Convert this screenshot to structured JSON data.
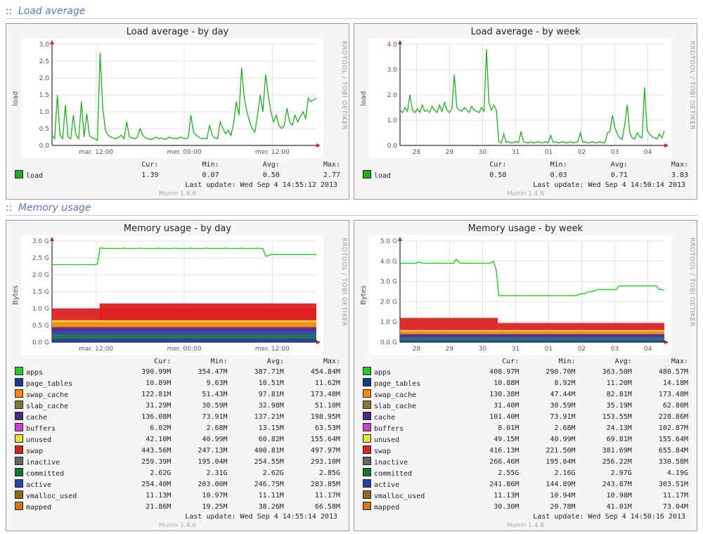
{
  "sections": {
    "load": {
      "title": "Load average"
    },
    "memory": {
      "title": "Memory usage"
    }
  },
  "watermark": "RRDTOOL / TOBI OETIKER",
  "munin_version": "Munin 1.4.6",
  "colors": {
    "grid": "#e0e0e0",
    "grid_major": "#c0c0c0",
    "axis": "#cc2222",
    "plot_bg": "#ffffff",
    "panel_bg": "#f5f5f5",
    "border": "#999999"
  },
  "series_colors": {
    "load": "#22aa22",
    "apps": "#22cc22",
    "page_tables": "#1a3a8a",
    "swap_cache": "#ff8800",
    "slab_cache": "#887733",
    "cache": "#4a2a8a",
    "buffers": "#cc44cc",
    "unused": "#eedd33",
    "swap": "#dd2222",
    "inactive": "#666666",
    "committed": "#117733",
    "active": "#2244aa",
    "vmalloc_used": "#8a6d1a",
    "mapped": "#cc7722"
  },
  "load_day": {
    "title": "Load average - by day",
    "ylabel": "load",
    "ylim": [
      0,
      3.0
    ],
    "ytick_step": 0.5,
    "xticks": [
      "mar. 12:00",
      "mer. 00:00",
      "mer. 12:00"
    ],
    "data": [
      0.3,
      0.2,
      1.5,
      0.3,
      0.2,
      1.2,
      0.25,
      0.2,
      0.9,
      0.3,
      0.2,
      1.3,
      0.25,
      0.95,
      0.3,
      0.22,
      0.2,
      0.15,
      2.75,
      1.1,
      0.45,
      0.3,
      0.25,
      0.22,
      0.2,
      0.25,
      0.3,
      0.2,
      0.7,
      0.25,
      0.22,
      0.2,
      0.25,
      0.5,
      0.3,
      0.22,
      0.2,
      0.18,
      0.2,
      0.25,
      0.2,
      0.22,
      0.18,
      0.2,
      0.25,
      0.2,
      0.22,
      0.2,
      0.25,
      0.22,
      0.2,
      0.22,
      0.9,
      0.4,
      0.3,
      0.25,
      0.2,
      0.22,
      0.2,
      0.6,
      0.3,
      0.22,
      0.2,
      0.7,
      0.5,
      0.35,
      0.45,
      0.3,
      0.65,
      1.3,
      0.9,
      2.3,
      1.4,
      1.0,
      0.7,
      0.5,
      0.4,
      0.9,
      1.5,
      1.0,
      2.1,
      1.5,
      1.0,
      0.7,
      0.9,
      0.6,
      0.5,
      0.6,
      1.1,
      0.7,
      0.6,
      0.9,
      0.7,
      0.85,
      1.0,
      0.8,
      1.4,
      1.3,
      1.35,
      1.4
    ],
    "stats_header": [
      "Cur:",
      "Min:",
      "Avg:",
      "Max:"
    ],
    "series": [
      {
        "name": "load",
        "color": "#22aa22",
        "cur": "1.39",
        "min": "0.07",
        "avg": "0.50",
        "max": "2.77"
      }
    ],
    "last_update": "Last update: Wed Sep  4 14:55:12 2013"
  },
  "load_week": {
    "title": "Load average - by week",
    "ylabel": "load",
    "ylim": [
      0,
      4.0
    ],
    "ytick_step": 1.0,
    "xticks": [
      "28",
      "29",
      "30",
      "31",
      "01",
      "02",
      "03",
      "04"
    ],
    "data": [
      1.4,
      1.3,
      1.5,
      1.35,
      2.0,
      1.4,
      1.3,
      1.45,
      1.3,
      1.6,
      1.35,
      1.4,
      1.3,
      1.55,
      1.4,
      1.3,
      1.6,
      1.35,
      1.7,
      1.4,
      1.3,
      1.45,
      2.8,
      1.5,
      1.4,
      1.35,
      1.5,
      1.4,
      1.3,
      1.55,
      1.4,
      1.35,
      1.3,
      1.5,
      1.35,
      3.8,
      1.7,
      1.4,
      1.6,
      1.4,
      0.15,
      0.1,
      0.45,
      0.12,
      0.15,
      0.1,
      0.12,
      0.15,
      0.11,
      0.55,
      0.15,
      0.12,
      0.1,
      0.15,
      0.1,
      0.12,
      0.15,
      0.1,
      0.12,
      0.15,
      0.1,
      0.4,
      0.12,
      0.15,
      0.1,
      0.12,
      0.15,
      0.1,
      0.12,
      0.15,
      0.1,
      0.12,
      0.15,
      0.5,
      0.12,
      0.15,
      0.1,
      0.12,
      0.15,
      0.1,
      0.12,
      0.15,
      0.1,
      0.12,
      0.5,
      0.55,
      1.2,
      0.7,
      0.45,
      0.3,
      0.25,
      0.85,
      1.6,
      0.5,
      0.3,
      0.25,
      0.5,
      0.35,
      0.3,
      2.3,
      0.6,
      0.45,
      0.35,
      0.3,
      0.25,
      0.45,
      0.3,
      0.58
    ],
    "stats_header": [
      "Cur:",
      "Min:",
      "Avg:",
      "Max:"
    ],
    "series": [
      {
        "name": "load",
        "color": "#22aa22",
        "cur": "0.58",
        "min": "0.03",
        "avg": "0.71",
        "max": "3.83"
      }
    ],
    "last_update": "Last update: Wed Sep  4 14:50:14 2013"
  },
  "mem_day": {
    "title": "Memory usage - by day",
    "ylabel": "Bytes",
    "ylim": [
      0,
      3.0
    ],
    "ytick_step": 0.5,
    "yunit": "G",
    "xticks": [
      "mar. 12:00",
      "mer. 00:00",
      "mer. 12:00"
    ],
    "total_line": [
      2.3,
      2.3,
      2.3,
      2.3,
      2.3,
      2.3,
      2.3,
      2.3,
      2.3,
      2.3,
      2.3,
      2.3,
      2.3,
      2.3,
      2.3,
      2.3,
      2.3,
      2.32,
      2.8,
      2.79,
      2.78,
      2.78,
      2.78,
      2.78,
      2.78,
      2.78,
      2.78,
      2.79,
      2.78,
      2.78,
      2.78,
      2.78,
      2.78,
      2.79,
      2.78,
      2.78,
      2.78,
      2.78,
      2.78,
      2.78,
      2.79,
      2.78,
      2.78,
      2.78,
      2.78,
      2.78,
      2.79,
      2.78,
      2.78,
      2.78,
      2.78,
      2.78,
      2.79,
      2.78,
      2.78,
      2.78,
      2.78,
      2.78,
      2.79,
      2.78,
      2.78,
      2.78,
      2.78,
      2.78,
      2.78,
      2.79,
      2.78,
      2.78,
      2.78,
      2.78,
      2.78,
      2.79,
      2.78,
      2.78,
      2.78,
      2.78,
      2.78,
      2.79,
      2.78,
      2.78,
      2.55,
      2.56,
      2.6,
      2.6,
      2.6,
      2.6,
      2.6,
      2.6,
      2.6,
      2.6,
      2.6,
      2.6,
      2.6,
      2.6,
      2.6,
      2.6,
      2.6,
      2.6,
      2.6,
      2.6
    ],
    "stack_bands": [
      {
        "color": "#1a3a8a",
        "lo": 0.0,
        "hi": 0.12
      },
      {
        "color": "#117733",
        "lo": 0.12,
        "hi": 0.22
      },
      {
        "color": "#2244aa",
        "lo": 0.22,
        "hi": 0.3
      },
      {
        "color": "#4a2a8a",
        "lo": 0.3,
        "hi": 0.45
      },
      {
        "color": "#ff8800",
        "lo": 0.45,
        "hi": 0.6
      },
      {
        "color": "#eedd33",
        "lo": 0.6,
        "hi": 0.65
      },
      {
        "color": "#dd2222",
        "lo": 0.65,
        "hi": 1.0
      },
      {
        "color": "#dd2222",
        "lo": 0.65,
        "hi": 1.15,
        "from": 0.18
      }
    ],
    "stats_header": [
      "Cur:",
      "Min:",
      "Avg:",
      "Max:"
    ],
    "series": [
      {
        "name": "apps",
        "color": "#22cc22",
        "cur": "390.99M",
        "min": "354.47M",
        "avg": "387.71M",
        "max": "454.84M"
      },
      {
        "name": "page_tables",
        "color": "#1a3a8a",
        "cur": "10.89M",
        "min": "9.63M",
        "avg": "10.51M",
        "max": "11.62M"
      },
      {
        "name": "swap_cache",
        "color": "#ff8800",
        "cur": "122.81M",
        "min": "51.43M",
        "avg": "97.81M",
        "max": "173.48M"
      },
      {
        "name": "slab_cache",
        "color": "#887733",
        "cur": "31.29M",
        "min": "30.59M",
        "avg": "32.98M",
        "max": "51.10M"
      },
      {
        "name": "cache",
        "color": "#4a2a8a",
        "cur": "136.08M",
        "min": "73.91M",
        "avg": "137.21M",
        "max": "198.95M"
      },
      {
        "name": "buffers",
        "color": "#cc44cc",
        "cur": "6.02M",
        "min": "2.68M",
        "avg": "13.15M",
        "max": "63.53M"
      },
      {
        "name": "unused",
        "color": "#eedd33",
        "cur": "42.10M",
        "min": "40.99M",
        "avg": "60.82M",
        "max": "155.64M"
      },
      {
        "name": "swap",
        "color": "#dd2222",
        "cur": "443.56M",
        "min": "247.13M",
        "avg": "400.81M",
        "max": "497.97M"
      },
      {
        "name": "inactive",
        "color": "#666666",
        "cur": "259.39M",
        "min": "195.04M",
        "avg": "254.55M",
        "max": "293.10M"
      },
      {
        "name": "committed",
        "color": "#117733",
        "cur": "2.62G",
        "min": "2.31G",
        "avg": "2.62G",
        "max": "2.85G"
      },
      {
        "name": "active",
        "color": "#2244aa",
        "cur": "254.40M",
        "min": "203.00M",
        "avg": "246.75M",
        "max": "283.85M"
      },
      {
        "name": "vmalloc_used",
        "color": "#8a6d1a",
        "cur": "11.13M",
        "min": "10.97M",
        "avg": "11.11M",
        "max": "11.17M"
      },
      {
        "name": "mapped",
        "color": "#cc7722",
        "cur": "21.86M",
        "min": "19.25M",
        "avg": "38.26M",
        "max": "66.58M"
      }
    ],
    "last_update": "Last update: Wed Sep  4 14:55:14 2013"
  },
  "mem_week": {
    "title": "Memory usage - by week",
    "ylabel": "Bytes",
    "ylim": [
      0,
      5.0
    ],
    "ytick_step": 1.0,
    "yunit": "G",
    "xticks": [
      "28",
      "29",
      "30",
      "31",
      "01",
      "02",
      "03",
      "04"
    ],
    "total_line": [
      3.9,
      3.9,
      3.9,
      3.9,
      3.9,
      3.9,
      3.9,
      3.95,
      3.92,
      3.9,
      3.9,
      3.9,
      3.9,
      3.9,
      3.9,
      3.9,
      3.9,
      3.9,
      3.9,
      3.9,
      3.9,
      4.1,
      3.95,
      3.9,
      3.9,
      3.9,
      3.9,
      3.9,
      3.9,
      3.9,
      3.9,
      3.9,
      3.9,
      3.9,
      3.92,
      4.0,
      3.6,
      2.3,
      2.3,
      2.3,
      2.3,
      2.3,
      2.3,
      2.3,
      2.3,
      2.3,
      2.3,
      2.3,
      2.3,
      2.3,
      2.3,
      2.3,
      2.3,
      2.3,
      2.3,
      2.3,
      2.3,
      2.3,
      2.3,
      2.3,
      2.3,
      2.3,
      2.3,
      2.3,
      2.3,
      2.3,
      2.3,
      2.35,
      2.4,
      2.4,
      2.45,
      2.5,
      2.5,
      2.55,
      2.6,
      2.6,
      2.6,
      2.6,
      2.6,
      2.6,
      2.6,
      2.6,
      2.78,
      2.78,
      2.78,
      2.78,
      2.78,
      2.78,
      2.78,
      2.78,
      2.78,
      2.78,
      2.78,
      2.78,
      2.78,
      2.78,
      2.78,
      2.6,
      2.6,
      2.55
    ],
    "stack_bands": [
      {
        "color": "#1a3a8a",
        "lo": 0.0,
        "hi": 0.1
      },
      {
        "color": "#117733",
        "lo": 0.1,
        "hi": 0.18
      },
      {
        "color": "#2244aa",
        "lo": 0.18,
        "hi": 0.26
      },
      {
        "color": "#4a2a8a",
        "lo": 0.26,
        "hi": 0.4
      },
      {
        "color": "#ff8800",
        "lo": 0.4,
        "hi": 0.55
      },
      {
        "color": "#eedd33",
        "lo": 0.55,
        "hi": 0.6
      },
      {
        "color": "#dd2222",
        "lo": 0.6,
        "hi": 1.2,
        "until": 0.37
      },
      {
        "color": "#dd2222",
        "lo": 0.6,
        "hi": 0.95,
        "from": 0.37
      }
    ],
    "stats_header": [
      "Cur:",
      "Min:",
      "Avg:",
      "Max:"
    ],
    "series": [
      {
        "name": "apps",
        "color": "#22cc22",
        "cur": "408.97M",
        "min": "290.70M",
        "avg": "363.50M",
        "max": "480.57M"
      },
      {
        "name": "page_tables",
        "color": "#1a3a8a",
        "cur": "10.88M",
        "min": "8.92M",
        "avg": "11.20M",
        "max": "14.18M"
      },
      {
        "name": "swap_cache",
        "color": "#ff8800",
        "cur": "130.38M",
        "min": "47.44M",
        "avg": "82.81M",
        "max": "173.48M"
      },
      {
        "name": "slab_cache",
        "color": "#887733",
        "cur": "31.40M",
        "min": "30.59M",
        "avg": "35.19M",
        "max": "62.80M"
      },
      {
        "name": "cache",
        "color": "#4a2a8a",
        "cur": "101.40M",
        "min": "73.91M",
        "avg": "153.55M",
        "max": "228.86M"
      },
      {
        "name": "buffers",
        "color": "#cc44cc",
        "cur": "8.01M",
        "min": "2.68M",
        "avg": "24.13M",
        "max": "102.87M"
      },
      {
        "name": "unused",
        "color": "#eedd33",
        "cur": "49.15M",
        "min": "40.99M",
        "avg": "69.81M",
        "max": "155.64M"
      },
      {
        "name": "swap",
        "color": "#dd2222",
        "cur": "416.13M",
        "min": "221.50M",
        "avg": "381.69M",
        "max": "655.84M"
      },
      {
        "name": "inactive",
        "color": "#666666",
        "cur": "266.46M",
        "min": "195.04M",
        "avg": "256.22M",
        "max": "330.58M"
      },
      {
        "name": "committed",
        "color": "#117733",
        "cur": "2.55G",
        "min": "2.16G",
        "avg": "2.97G",
        "max": "4.19G"
      },
      {
        "name": "active",
        "color": "#2244aa",
        "cur": "241.86M",
        "min": "144.89M",
        "avg": "243.87M",
        "max": "303.51M"
      },
      {
        "name": "vmalloc_used",
        "color": "#8a6d1a",
        "cur": "11.13M",
        "min": "10.94M",
        "avg": "10.98M",
        "max": "11.17M"
      },
      {
        "name": "mapped",
        "color": "#cc7722",
        "cur": "30.30M",
        "min": "20.78M",
        "avg": "41.01M",
        "max": "73.04M"
      }
    ],
    "last_update": "Last update: Wed Sep  4 14:50:16 2013"
  }
}
